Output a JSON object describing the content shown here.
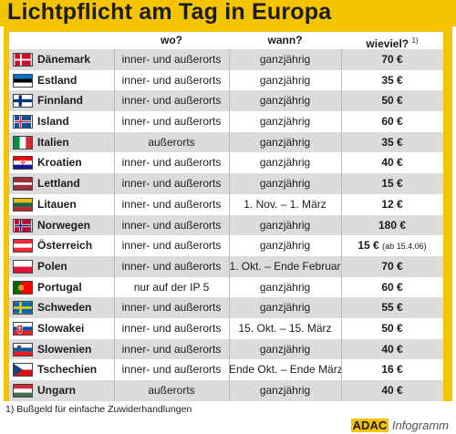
{
  "title": "Lichtpflicht am Tag in Europa",
  "headers": {
    "wo": "wo?",
    "wann": "wann?",
    "wieviel": "wieviel?",
    "wieviel_sup": "1)"
  },
  "rows": [
    {
      "country": "Dänemark",
      "wo": "inner- und außerorts",
      "wann": "ganzjährig",
      "wieviel": "70 €",
      "note": ""
    },
    {
      "country": "Estland",
      "wo": "inner- und außerorts",
      "wann": "ganzjährig",
      "wieviel": "35 €",
      "note": ""
    },
    {
      "country": "Finnland",
      "wo": "inner- und außerorts",
      "wann": "ganzjährig",
      "wieviel": "50 €",
      "note": ""
    },
    {
      "country": "Island",
      "wo": "inner- und außerorts",
      "wann": "ganzjährig",
      "wieviel": "60 €",
      "note": ""
    },
    {
      "country": "Italien",
      "wo": "außerorts",
      "wann": "ganzjährig",
      "wieviel": "35 €",
      "note": ""
    },
    {
      "country": "Kroatien",
      "wo": "inner- und außerorts",
      "wann": "ganzjährig",
      "wieviel": "40 €",
      "note": ""
    },
    {
      "country": "Lettland",
      "wo": "inner- und außerorts",
      "wann": "ganzjährig",
      "wieviel": "15 €",
      "note": ""
    },
    {
      "country": "Litauen",
      "wo": "inner- und außerorts",
      "wann": "1. Nov. – 1. März",
      "wieviel": "12 €",
      "note": ""
    },
    {
      "country": "Norwegen",
      "wo": "inner- und außerorts",
      "wann": "ganzjährig",
      "wieviel": "180 €",
      "note": ""
    },
    {
      "country": "Österreich",
      "wo": "inner- und außerorts",
      "wann": "ganzjährig",
      "wieviel": "15 €",
      "note": "(ab 15.4.06)"
    },
    {
      "country": "Polen",
      "wo": "inner- und außerorts",
      "wann": "1. Okt. – Ende Februar",
      "wieviel": "70 €",
      "note": ""
    },
    {
      "country": "Portugal",
      "wo": "nur auf der IP 5",
      "wann": "ganzjährig",
      "wieviel": "60 €",
      "note": ""
    },
    {
      "country": "Schweden",
      "wo": "inner- und außerorts",
      "wann": "ganzjährig",
      "wieviel": "55 €",
      "note": ""
    },
    {
      "country": "Slowakei",
      "wo": "inner- und außerorts",
      "wann": "15. Okt. – 15. März",
      "wieviel": "50 €",
      "note": ""
    },
    {
      "country": "Slowenien",
      "wo": "inner- und außerorts",
      "wann": "ganzjährig",
      "wieviel": "40 €",
      "note": ""
    },
    {
      "country": "Tschechien",
      "wo": "inner- und außerorts",
      "wann": "Ende Okt. – Ende März",
      "wieviel": "16 €",
      "note": ""
    },
    {
      "country": "Ungarn",
      "wo": "außerorts",
      "wann": "ganzjährig",
      "wieviel": "40 €",
      "note": ""
    }
  ],
  "footnote": "1) Bußgeld für einfache Zuwiderhandlungen",
  "logo": {
    "brand": "ADAC",
    "suffix": "Infogramm"
  },
  "colors": {
    "accent": "#f5c400",
    "row_dark": "#dcdcdc",
    "row_light": "#ffffff"
  }
}
